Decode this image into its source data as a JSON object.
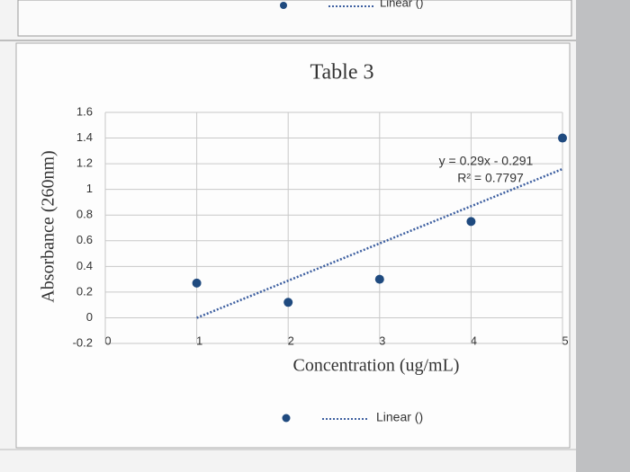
{
  "partial_legend_above": "Linear ()",
  "chart_data": {
    "type": "scatter",
    "title": "Table 3",
    "x_label": "Concentration (ug/mL)",
    "y_label": "Absorbance (260nm)",
    "x": [
      1,
      2,
      3,
      4,
      5
    ],
    "series": [
      {
        "color": "#1f4a7f",
        "values": [
          0.27,
          0.12,
          0.3,
          0.75,
          1.4
        ]
      }
    ],
    "trendline": {
      "slope": 0.29,
      "intercept": -0.291,
      "color": "#3d5fa0",
      "label": "Linear ()",
      "equation": "y = 0.29x - 0.291",
      "r2": "R² = 0.7797"
    },
    "xlim": [
      0,
      5
    ],
    "xticks": [
      0,
      1,
      2,
      3,
      4,
      5
    ],
    "ylim": [
      -0.2,
      1.6
    ],
    "yticks": [
      -0.2,
      0,
      0.2,
      0.4,
      0.6,
      0.8,
      1,
      1.2,
      1.4,
      1.6
    ],
    "grid": true
  }
}
